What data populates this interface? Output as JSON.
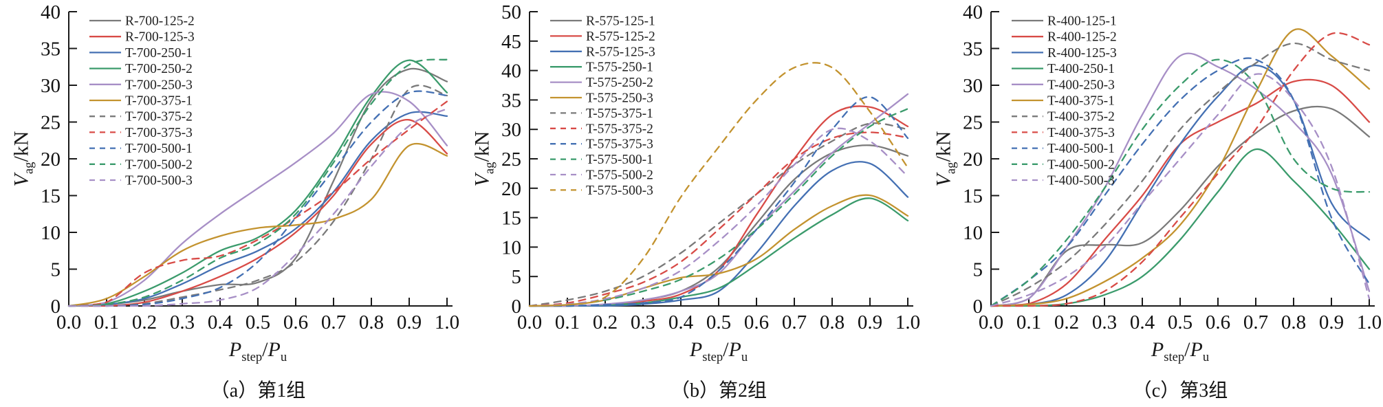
{
  "figure_title": "",
  "ylabel": {
    "base": "V",
    "sub": "ag",
    "unit": "/kN"
  },
  "xlabel": {
    "base": "P",
    "sub1": "step",
    "slash": "/",
    "base2": "P",
    "sub2": "u"
  },
  "colors": {
    "gray": "#7a7a7a",
    "red": "#d84b47",
    "blue": "#4470b3",
    "green": "#3b9b6c",
    "purple": "#a78fc6",
    "gold": "#c3932f",
    "axis": "#1a1a1a"
  },
  "chart_data": [
    {
      "type": "line",
      "caption": "（a）第1组",
      "ylim": [
        0,
        40
      ],
      "yticks": [
        0,
        5,
        10,
        15,
        20,
        25,
        30,
        35,
        40
      ],
      "x": [
        0,
        0.1,
        0.2,
        0.3,
        0.4,
        0.5,
        0.6,
        0.7,
        0.8,
        0.9,
        1.0
      ],
      "xtick_labels": [
        "0.0",
        "0.1",
        "0.2",
        "0.3",
        "0.4",
        "0.5",
        "0.6",
        "0.7",
        "0.8",
        "0.9",
        "1.0"
      ],
      "grid": false,
      "legend_position": "top-left",
      "series": [
        {
          "name": "R-700-125-2",
          "color": "#7a7a7a",
          "dash": false,
          "values": [
            0,
            0.2,
            0.8,
            2,
            2.9,
            3.2,
            6.5,
            17,
            28,
            32.2,
            30.5
          ]
        },
        {
          "name": "R-700-125-3",
          "color": "#d84b47",
          "dash": false,
          "values": [
            0,
            0,
            0.5,
            2,
            4,
            6.5,
            10,
            15,
            22,
            25.3,
            20.7
          ]
        },
        {
          "name": "T-700-250-1",
          "color": "#4470b3",
          "dash": false,
          "values": [
            0,
            0.2,
            1,
            3,
            5.5,
            7.5,
            10.5,
            15.5,
            22.5,
            26.2,
            25.8
          ]
        },
        {
          "name": "T-700-250-2",
          "color": "#3b9b6c",
          "dash": false,
          "values": [
            0,
            0.3,
            2,
            4.5,
            7.5,
            9.3,
            13,
            20,
            28.5,
            33.4,
            29
          ]
        },
        {
          "name": "T-700-250-3",
          "color": "#a78fc6",
          "dash": false,
          "values": [
            0,
            0.5,
            3.5,
            8.5,
            12.5,
            16,
            19.5,
            23.5,
            28.8,
            27.8,
            21.8
          ]
        },
        {
          "name": "T-700-375-1",
          "color": "#c3932f",
          "dash": false,
          "values": [
            0,
            1,
            4,
            7.5,
            9.5,
            10.6,
            11,
            11.8,
            14.5,
            21.8,
            20.4
          ]
        },
        {
          "name": "T-700-375-2",
          "color": "#7a7a7a",
          "dash": true,
          "values": [
            0,
            0,
            0.3,
            1.2,
            2.2,
            3.5,
            6,
            11.5,
            20,
            29.5,
            28.6
          ]
        },
        {
          "name": "T-700-375-3",
          "color": "#d84b47",
          "dash": true,
          "values": [
            0,
            0.5,
            4.5,
            6.2,
            6.8,
            9,
            12,
            15.5,
            20,
            24,
            27.8
          ]
        },
        {
          "name": "T-700-500-1",
          "color": "#4470b3",
          "dash": true,
          "values": [
            0,
            0,
            0.2,
            1,
            2.5,
            6,
            12,
            18.5,
            25,
            29,
            28.6
          ]
        },
        {
          "name": "T-700-500-2",
          "color": "#3b9b6c",
          "dash": true,
          "values": [
            0,
            0.2,
            1.2,
            3.5,
            6.5,
            8.5,
            12.5,
            19.5,
            27.5,
            32.8,
            33.5
          ]
        },
        {
          "name": "T-700-500-3",
          "color": "#a78fc6",
          "dash": true,
          "values": [
            0,
            0,
            0,
            0.3,
            0.8,
            2.5,
            7,
            12.5,
            19,
            24.5,
            26.8
          ]
        }
      ]
    },
    {
      "type": "line",
      "caption": "（b）第2组",
      "ylim": [
        0,
        50
      ],
      "yticks": [
        0,
        5,
        10,
        15,
        20,
        25,
        30,
        35,
        40,
        45,
        50
      ],
      "x": [
        0,
        0.1,
        0.2,
        0.3,
        0.4,
        0.5,
        0.6,
        0.7,
        0.8,
        0.9,
        1.0
      ],
      "xtick_labels": [
        "0.0",
        "0.1",
        "0.2",
        "0.3",
        "0.4",
        "0.5",
        "0.6",
        "0.7",
        "0.8",
        "0.9",
        "1.0"
      ],
      "grid": false,
      "legend_position": "top-left",
      "series": [
        {
          "name": "R-575-125-1",
          "color": "#7a7a7a",
          "dash": false,
          "values": [
            0,
            0,
            0.2,
            1,
            2.5,
            6.5,
            14,
            21.5,
            26,
            27.3,
            25.5
          ]
        },
        {
          "name": "R-575-125-2",
          "color": "#d84b47",
          "dash": false,
          "values": [
            0,
            0,
            0.2,
            0.8,
            2,
            6,
            15.5,
            25,
            32.5,
            33.8,
            30.5
          ]
        },
        {
          "name": "R-575-125-3",
          "color": "#4470b3",
          "dash": false,
          "values": [
            0,
            0,
            0,
            0.3,
            1,
            2.5,
            9,
            17,
            23,
            24.2,
            18.5
          ]
        },
        {
          "name": "T-575-250-1",
          "color": "#3b9b6c",
          "dash": false,
          "values": [
            0,
            0,
            0.2,
            0.5,
            1.5,
            3,
            7,
            11.5,
            15.5,
            18.3,
            14.5
          ]
        },
        {
          "name": "T-575-250-2",
          "color": "#a78fc6",
          "dash": false,
          "values": [
            0,
            0,
            0.3,
            1,
            2.5,
            5.5,
            13,
            19.5,
            26,
            31,
            36
          ]
        },
        {
          "name": "T-575-250-3",
          "color": "#c3932f",
          "dash": false,
          "values": [
            0,
            0.2,
            1,
            3,
            4.8,
            5.5,
            8,
            13,
            17,
            18.8,
            15.3
          ]
        },
        {
          "name": "T-575-375-1",
          "color": "#7a7a7a",
          "dash": true,
          "values": [
            0,
            1,
            2.5,
            5,
            9,
            14,
            19,
            24,
            28,
            31,
            30
          ]
        },
        {
          "name": "T-575-375-2",
          "color": "#d84b47",
          "dash": true,
          "values": [
            0,
            0.5,
            2,
            4,
            7.5,
            13,
            19,
            25,
            28.5,
            29.5,
            28.6
          ]
        },
        {
          "name": "T-575-375-3",
          "color": "#4470b3",
          "dash": true,
          "values": [
            0,
            0,
            0.2,
            0.5,
            1.5,
            6,
            13,
            21,
            30,
            35.5,
            28.5
          ]
        },
        {
          "name": "T-575-500-1",
          "color": "#3b9b6c",
          "dash": true,
          "values": [
            0,
            0.2,
            1,
            2.5,
            4.5,
            8,
            13,
            19,
            25.5,
            30.5,
            33.5
          ]
        },
        {
          "name": "T-575-500-2",
          "color": "#a78fc6",
          "dash": true,
          "values": [
            0,
            0.3,
            1.2,
            3,
            6,
            11,
            17,
            24,
            30,
            28,
            22
          ]
        },
        {
          "name": "T-575-500-3",
          "color": "#c3932f",
          "dash": true,
          "values": [
            0,
            0.2,
            1.5,
            8,
            18.5,
            27,
            35,
            40.5,
            40.5,
            33,
            23.5
          ]
        }
      ]
    },
    {
      "type": "line",
      "caption": "（c）第3组",
      "ylim": [
        0,
        40
      ],
      "yticks": [
        0,
        5,
        10,
        15,
        20,
        25,
        30,
        35,
        40
      ],
      "x": [
        0,
        0.1,
        0.2,
        0.3,
        0.4,
        0.5,
        0.6,
        0.7,
        0.8,
        0.9,
        1.0
      ],
      "xtick_labels": [
        "0.0",
        "0.1",
        "0.2",
        "0.3",
        "0.4",
        "0.5",
        "0.6",
        "0.7",
        "0.8",
        "0.9",
        "1.0"
      ],
      "grid": false,
      "legend_position": "top-left",
      "series": [
        {
          "name": "R-400-125-1",
          "color": "#7a7a7a",
          "dash": false,
          "values": [
            0,
            1,
            7.5,
            8.3,
            8.6,
            13,
            19,
            23.5,
            26.5,
            26.8,
            23
          ]
        },
        {
          "name": "R-400-125-2",
          "color": "#d84b47",
          "dash": false,
          "values": [
            0,
            0.3,
            3,
            9,
            15,
            22,
            25,
            27.5,
            30.5,
            30,
            25
          ]
        },
        {
          "name": "R-400-125-3",
          "color": "#4470b3",
          "dash": false,
          "values": [
            0,
            0.2,
            1.5,
            6,
            14,
            22,
            28.5,
            32.7,
            28,
            14,
            9
          ]
        },
        {
          "name": "T-400-250-1",
          "color": "#3b9b6c",
          "dash": false,
          "values": [
            0,
            0,
            0.3,
            1.5,
            4,
            9,
            15.5,
            21.3,
            17,
            11.5,
            5
          ]
        },
        {
          "name": "T-400-250-3",
          "color": "#a78fc6",
          "dash": false,
          "values": [
            0,
            1,
            8,
            16,
            26,
            34,
            32.5,
            29.5,
            25,
            18,
            2
          ]
        },
        {
          "name": "T-400-375-1",
          "color": "#c3932f",
          "dash": false,
          "values": [
            0,
            0.2,
            1,
            3.3,
            6.5,
            11,
            18.5,
            29,
            37.5,
            34,
            29.5
          ]
        },
        {
          "name": "T-400-375-2",
          "color": "#7a7a7a",
          "dash": true,
          "values": [
            0,
            2.5,
            6,
            11,
            17,
            24,
            29,
            33,
            35.7,
            33.5,
            32
          ]
        },
        {
          "name": "T-400-375-3",
          "color": "#d84b47",
          "dash": true,
          "values": [
            0,
            0,
            0.3,
            2,
            6,
            12,
            18,
            24,
            32,
            37,
            35.5
          ]
        },
        {
          "name": "T-400-500-1",
          "color": "#4470b3",
          "dash": true,
          "values": [
            0,
            3.5,
            8,
            15,
            22,
            28,
            32,
            33.5,
            28,
            12,
            3
          ]
        },
        {
          "name": "T-400-500-2",
          "color": "#3b9b6c",
          "dash": true,
          "values": [
            0,
            3.5,
            9,
            16,
            24,
            30,
            33.5,
            30,
            20,
            16,
            15.5
          ]
        },
        {
          "name": "T-400-500-3",
          "color": "#a78fc6",
          "dash": true,
          "values": [
            0,
            1.5,
            4,
            8,
            14,
            20,
            26,
            31.5,
            28,
            19,
            1
          ]
        }
      ]
    }
  ]
}
